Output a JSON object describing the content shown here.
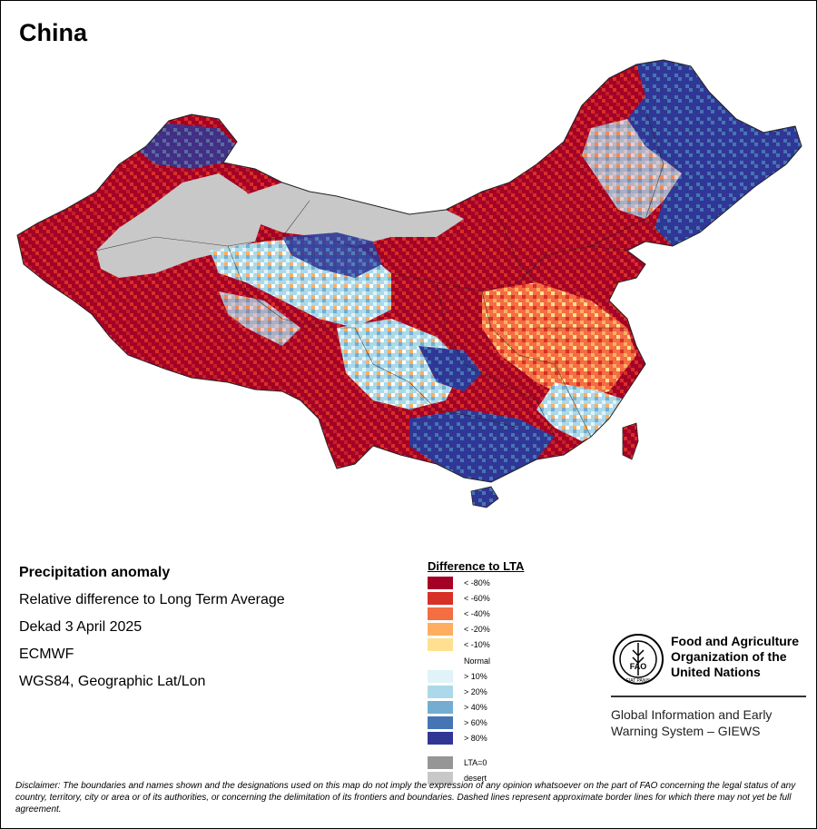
{
  "title": "China",
  "info": {
    "heading": "Precipitation anomaly",
    "subtitle": "Relative difference to Long Term Average",
    "period": "Dekad 3 April 2025",
    "source": "ECMWF",
    "projection": "WGS84, Geographic Lat/Lon"
  },
  "legend": {
    "title": "Difference to LTA",
    "items": [
      {
        "label": "< -80%",
        "color": "#a50026"
      },
      {
        "label": "< -60%",
        "color": "#d73027"
      },
      {
        "label": "< -40%",
        "color": "#f46d43"
      },
      {
        "label": "< -20%",
        "color": "#fdae61"
      },
      {
        "label": "< -10%",
        "color": "#fee090"
      },
      {
        "label": "Normal",
        "color": "#ffffff"
      },
      {
        "label": "> 10%",
        "color": "#e0f3f8"
      },
      {
        "label": "> 20%",
        "color": "#abd9e9"
      },
      {
        "label": "> 40%",
        "color": "#74add1"
      },
      {
        "label": "> 60%",
        "color": "#4575b4"
      },
      {
        "label": "> 80%",
        "color": "#313695"
      },
      {
        "label": "LTA=0",
        "color": "#969696"
      },
      {
        "label": "desert",
        "color": "#c8c8c8"
      }
    ]
  },
  "fao": {
    "name_line1": "Food and Agriculture",
    "name_line2": "Organization of the",
    "name_line3": "United Nations",
    "logo_text": "FAO",
    "logo_motto": "FIAT PANIS",
    "giews_line1": "Global Information and Early",
    "giews_line2": "Warning System – GIEWS"
  },
  "disclaimer": "Disclaimer: The boundaries and names shown and the designations used on this map do not imply the expression of any opinion whatsoever on the part of FAO concerning the legal status of any country, territory, city or area or of its authorities, or concerning the delimitation of its frontiers and boundaries. Dashed lines represent approximate border lines for which there may not yet be full agreement."
}
